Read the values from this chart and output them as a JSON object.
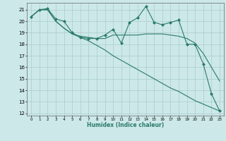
{
  "xlabel": "Humidex (Indice chaleur)",
  "bg_color": "#cce8e8",
  "grid_color": "#aacccc",
  "line_color": "#2a7a6a",
  "xlim": [
    -0.5,
    23.5
  ],
  "ylim": [
    11.8,
    21.6
  ],
  "yticks": [
    12,
    13,
    14,
    15,
    16,
    17,
    18,
    19,
    20,
    21
  ],
  "xticks": [
    0,
    1,
    2,
    3,
    4,
    5,
    6,
    7,
    8,
    9,
    10,
    11,
    12,
    13,
    14,
    15,
    16,
    17,
    18,
    19,
    20,
    21,
    22,
    23
  ],
  "series": [
    {
      "x": [
        0,
        1,
        2,
        3,
        4,
        5,
        6,
        7,
        8,
        9,
        10,
        11,
        12,
        13,
        14,
        15,
        16,
        17,
        18,
        19,
        20,
        21,
        22,
        23
      ],
      "y": [
        20.4,
        21.0,
        21.1,
        20.2,
        20.0,
        19.0,
        18.6,
        18.5,
        18.5,
        18.8,
        19.3,
        18.1,
        19.9,
        20.3,
        21.3,
        19.9,
        19.7,
        19.9,
        20.1,
        18.0,
        18.0,
        16.3,
        13.7,
        12.2
      ],
      "marker": "D",
      "markersize": 2.0,
      "linewidth": 0.8
    },
    {
      "x": [
        0,
        1,
        2,
        3,
        4,
        5,
        6,
        7,
        8,
        9,
        10,
        11,
        12,
        13,
        14,
        15,
        16,
        17,
        18,
        19,
        20,
        21,
        22,
        23
      ],
      "y": [
        20.4,
        21.0,
        21.0,
        20.0,
        19.4,
        18.9,
        18.7,
        18.6,
        18.5,
        18.5,
        18.8,
        18.8,
        18.8,
        18.8,
        18.9,
        18.9,
        18.9,
        18.8,
        18.7,
        18.5,
        18.1,
        17.2,
        16.0,
        14.8
      ],
      "marker": null,
      "markersize": 0,
      "linewidth": 0.8
    },
    {
      "x": [
        0,
        1,
        2,
        3,
        4,
        5,
        6,
        7,
        8,
        9,
        10,
        11,
        12,
        13,
        14,
        15,
        16,
        17,
        18,
        19,
        20,
        21,
        22,
        23
      ],
      "y": [
        20.4,
        21.0,
        21.0,
        20.0,
        19.4,
        18.9,
        18.6,
        18.3,
        17.9,
        17.5,
        17.0,
        16.6,
        16.2,
        15.8,
        15.4,
        15.0,
        14.6,
        14.2,
        13.9,
        13.5,
        13.1,
        12.8,
        12.5,
        12.2
      ],
      "marker": null,
      "markersize": 0,
      "linewidth": 0.8
    }
  ]
}
